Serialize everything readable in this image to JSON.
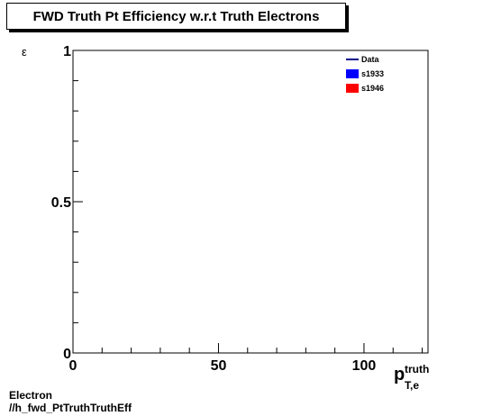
{
  "chart_data": {
    "type": "line",
    "title": "FWD Truth Pt Efficiency w.r.t Truth Electrons",
    "ylabel": "ε",
    "xlabel_main": "p",
    "xlabel_sup": "truth",
    "xlabel_sub": "T,e",
    "xlim": [
      0,
      122
    ],
    "ylim": [
      0,
      1
    ],
    "x_ticks": [
      {
        "value": 0,
        "label": "0"
      },
      {
        "value": 50,
        "label": "50"
      },
      {
        "value": 100,
        "label": "100"
      }
    ],
    "y_ticks": [
      {
        "value": 0,
        "label": "0"
      },
      {
        "value": 0.5,
        "label": "0.5"
      },
      {
        "value": 1,
        "label": "1"
      }
    ],
    "legend_position": "top-right",
    "series": [
      {
        "name": "Data",
        "style": "line",
        "color": "#00008b",
        "values": []
      },
      {
        "name": "s1933",
        "style": "fill",
        "color": "#0000ff",
        "values": []
      },
      {
        "name": "s1946",
        "style": "fill",
        "color": "#ff0000",
        "values": []
      }
    ]
  },
  "caption": {
    "line1": "Electron",
    "line2": "//h_fwd_PtTruthTruthEff"
  }
}
